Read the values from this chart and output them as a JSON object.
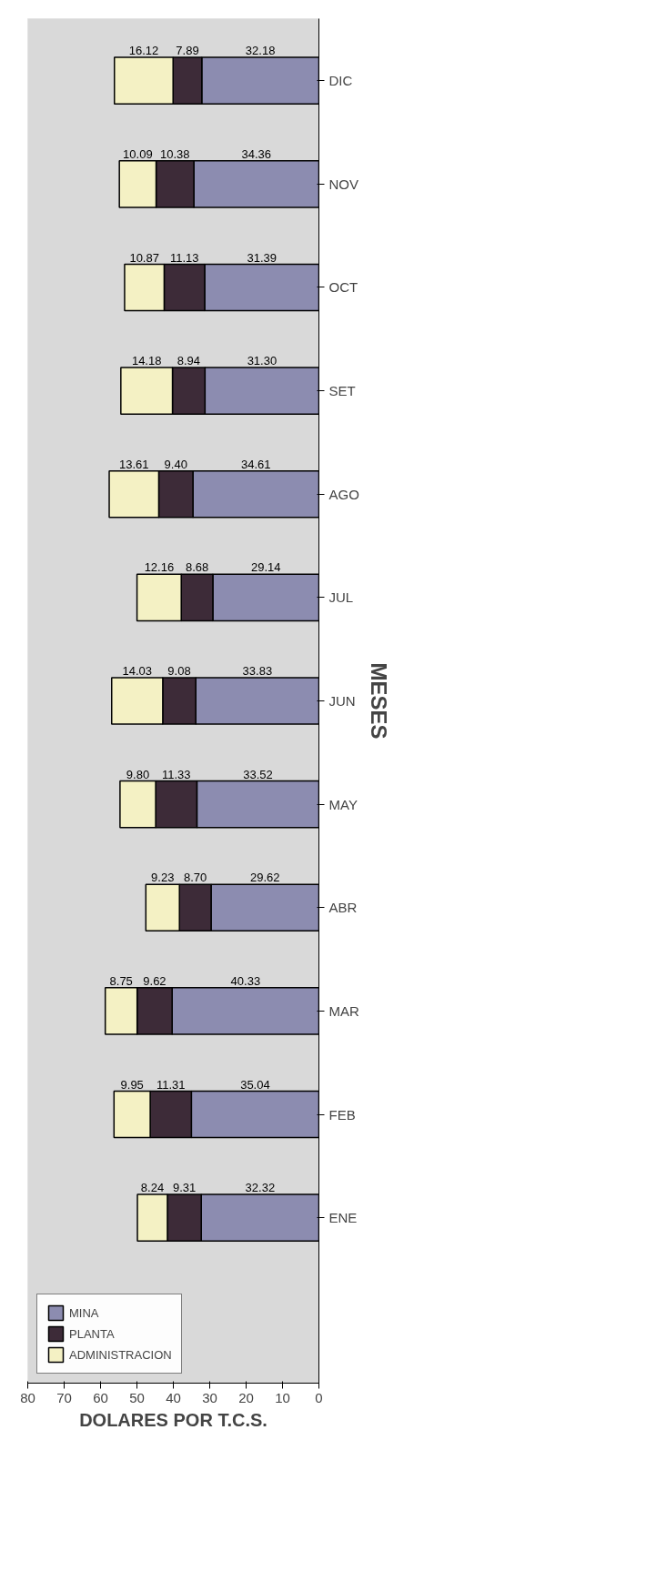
{
  "chart_data": {
    "type": "bar",
    "orientation": "horizontal",
    "stacked": true,
    "xlabel": "DOLARES POR T.C.S.",
    "ylabel": "MESES",
    "categories": [
      "DIC",
      "NOV",
      "OCT",
      "SET",
      "AGO",
      "JUL",
      "JUN",
      "MAY",
      "ABR",
      "MAR",
      "FEB",
      "ENE"
    ],
    "series": [
      {
        "name": "MINA",
        "color": "#8c8cb0",
        "values": [
          32.18,
          34.36,
          31.39,
          31.3,
          34.61,
          29.14,
          33.83,
          33.52,
          29.62,
          40.33,
          35.04,
          32.32
        ],
        "value_labels": [
          "32.18",
          "34.36",
          "31.39",
          "31.30",
          "34.61",
          "29.14",
          "33.83",
          "33.52",
          "29.62",
          "40.33",
          "35.04",
          "32.32"
        ]
      },
      {
        "name": "PLANTA",
        "color": "#3d2b38",
        "values": [
          7.89,
          10.38,
          11.13,
          8.94,
          9.4,
          8.68,
          9.08,
          11.33,
          8.7,
          9.62,
          11.31,
          9.31
        ],
        "value_labels": [
          "7.89",
          "10.38",
          "11.13",
          "8.94",
          "9.40",
          "8.68",
          "9.08",
          "11.33",
          "8.70",
          "9.62",
          "11.31",
          "9.31"
        ]
      },
      {
        "name": "ADMINISTRACION",
        "color": "#f4f1c4",
        "values": [
          16.12,
          10.09,
          10.87,
          14.18,
          13.61,
          12.16,
          14.03,
          9.8,
          9.23,
          8.75,
          9.95,
          8.24
        ],
        "value_labels": [
          "16.12",
          "10.09",
          "10.87",
          "14.18",
          "13.61",
          "12.16",
          "14.03",
          "9.80",
          "9.23",
          "8.75",
          "9.95",
          "8.24"
        ]
      }
    ],
    "xlim": [
      80,
      0
    ],
    "xticks": [
      0,
      10,
      20,
      30,
      40,
      50,
      60,
      70,
      80
    ],
    "grid": false,
    "legend": "bottom left"
  }
}
